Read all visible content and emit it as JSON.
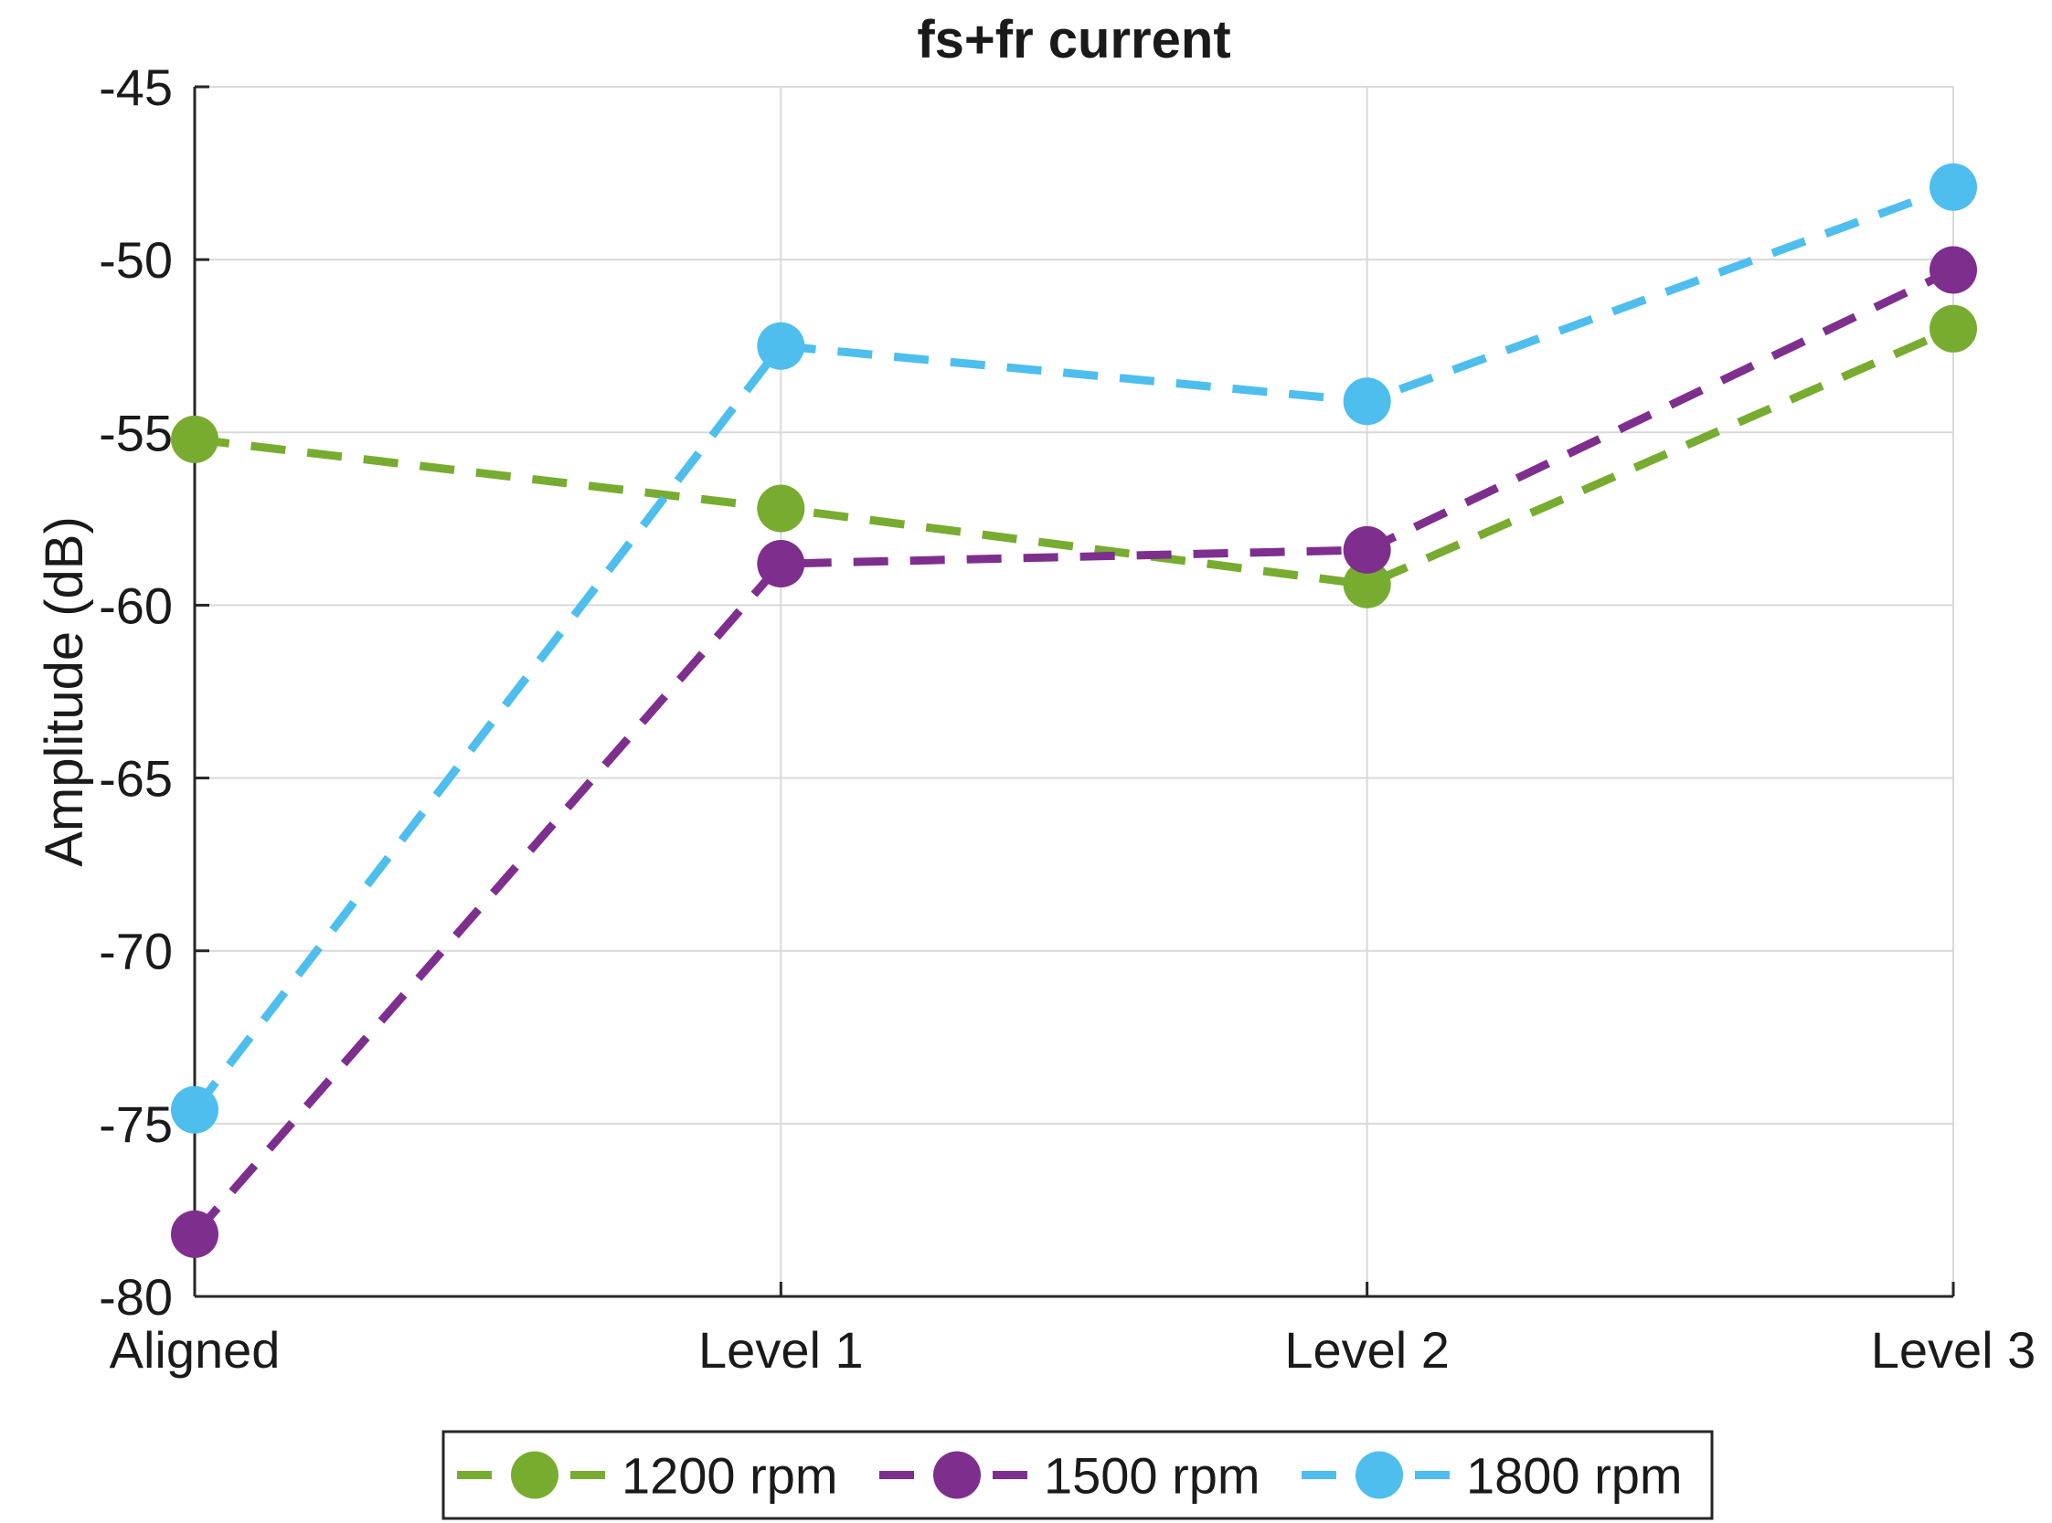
{
  "chart_data": {
    "type": "line",
    "title": "fs+fr current",
    "xlabel": "",
    "ylabel": "Amplitude (dB)",
    "categories": [
      "Aligned",
      "Level 1",
      "Level 2",
      "Level 3"
    ],
    "ylim": [
      -80,
      -45
    ],
    "yticks": [
      "-45",
      "-50",
      "-55",
      "-60",
      "-65",
      "-70",
      "-75",
      "-80"
    ],
    "grid": true,
    "legend_position": "bottom",
    "series": [
      {
        "name": "1200 rpm",
        "color": "#77AC30",
        "values": [
          -55.2,
          -57.2,
          -59.4,
          -52.0
        ]
      },
      {
        "name": "1500 rpm",
        "color": "#7E2F8E",
        "values": [
          -78.2,
          -58.8,
          -58.4,
          -50.3
        ]
      },
      {
        "name": "1800 rpm",
        "color": "#4DBEEE",
        "values": [
          -74.6,
          -52.5,
          -54.1,
          -47.9
        ]
      }
    ]
  }
}
